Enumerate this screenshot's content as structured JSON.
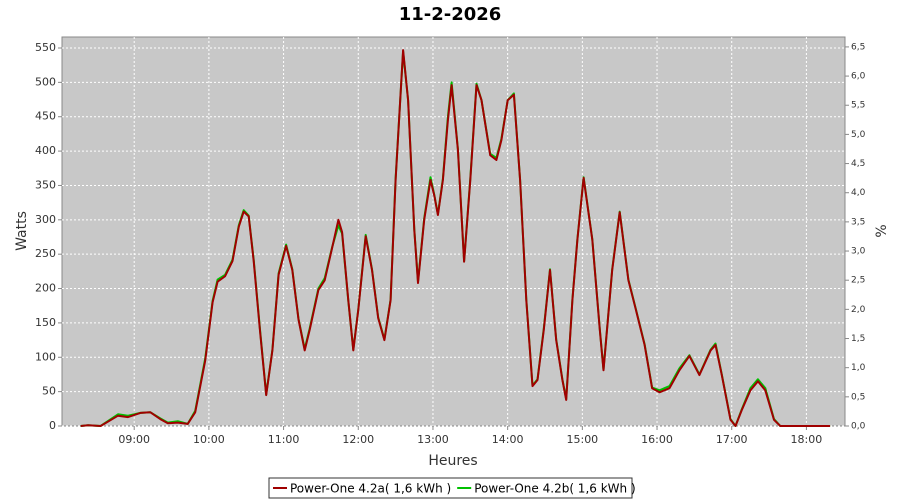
{
  "chart_data": {
    "type": "line",
    "title": "11-2-2026",
    "xlabel": "Heures",
    "ylabel": "Watts",
    "y2label": "%",
    "x": [
      "08:17",
      "08:23",
      "08:33",
      "08:47",
      "08:55",
      "09:05",
      "09:13",
      "09:21",
      "09:27",
      "09:35",
      "09:43",
      "09:49",
      "09:57",
      "10:03",
      "10:07",
      "10:13",
      "10:19",
      "10:24",
      "10:28",
      "10:32",
      "10:36",
      "10:41",
      "10:46",
      "10:51",
      "10:56",
      "11:02",
      "11:07",
      "11:12",
      "11:17",
      "11:21",
      "11:28",
      "11:33",
      "11:39",
      "11:44",
      "11:47",
      "11:52",
      "11:56",
      "12:00",
      "12:06",
      "12:11",
      "12:16",
      "12:21",
      "12:26",
      "12:30",
      "12:36",
      "12:40",
      "12:45",
      "12:48",
      "12:53",
      "12:58",
      "13:01",
      "13:04",
      "13:08",
      "13:12",
      "13:15",
      "13:20",
      "13:25",
      "13:30",
      "13:35",
      "13:39",
      "13:46",
      "13:51",
      "13:55",
      "14:00",
      "14:05",
      "14:10",
      "14:15",
      "14:20",
      "14:24",
      "14:29",
      "14:34",
      "14:39",
      "14:44",
      "14:47",
      "14:52",
      "14:56",
      "15:01",
      "15:08",
      "15:14",
      "15:17",
      "15:24",
      "15:30",
      "15:37",
      "15:43",
      "15:50",
      "15:56",
      "16:02",
      "16:10",
      "16:18",
      "16:26",
      "16:34",
      "16:43",
      "16:47",
      "16:52",
      "16:59",
      "17:03",
      "17:08",
      "17:15",
      "17:21",
      "17:27",
      "17:34",
      "17:39",
      "17:47",
      "18:19"
    ],
    "series": [
      {
        "name": "Power-One 4.2a( 1,6 kWh )",
        "color": "#a00000",
        "values": [
          0,
          1,
          0,
          15,
          13,
          19,
          20,
          10,
          4,
          5,
          3,
          20,
          95,
          180,
          210,
          218,
          240,
          290,
          312,
          305,
          240,
          140,
          45,
          110,
          220,
          262,
          227,
          155,
          110,
          140,
          198,
          212,
          259,
          300,
          282,
          183,
          110,
          169,
          276,
          227,
          157,
          125,
          183,
          358,
          547,
          474,
          285,
          208,
          300,
          358,
          336,
          307,
          358,
          445,
          496,
          402,
          239,
          358,
          496,
          474,
          394,
          387,
          416,
          474,
          482,
          358,
          183,
          58,
          67,
          140,
          227,
          125,
          67,
          38,
          183,
          271,
          361,
          271,
          140,
          81,
          227,
          311,
          212,
          169,
          118,
          55,
          49,
          55,
          81,
          102,
          74,
          110,
          118,
          74,
          9,
          0,
          23,
          52,
          65,
          52,
          9,
          0,
          0,
          0
        ]
      },
      {
        "name": "Power-One 4.2b( 1,6 kWh )",
        "color": "#00c000",
        "values": [
          0,
          1,
          0,
          17,
          15,
          19,
          20,
          11,
          5,
          7,
          3,
          22,
          98,
          182,
          213,
          220,
          242,
          292,
          314,
          306,
          242,
          142,
          46,
          111,
          222,
          264,
          228,
          156,
          112,
          142,
          200,
          215,
          260,
          292,
          280,
          182,
          111,
          170,
          278,
          228,
          158,
          126,
          184,
          360,
          545,
          474,
          286,
          210,
          302,
          362,
          337,
          308,
          360,
          450,
          500,
          403,
          240,
          360,
          498,
          474,
          396,
          390,
          418,
          474,
          484,
          358,
          184,
          59,
          68,
          142,
          228,
          126,
          68,
          39,
          184,
          272,
          362,
          272,
          141,
          82,
          228,
          312,
          213,
          170,
          119,
          56,
          52,
          58,
          84,
          103,
          75,
          111,
          120,
          75,
          10,
          0,
          24,
          55,
          68,
          55,
          10,
          0,
          0,
          0
        ]
      }
    ],
    "xlim": [
      "08:02",
      "18:31"
    ],
    "xticks": [
      "09:00",
      "10:00",
      "11:00",
      "12:00",
      "13:00",
      "14:00",
      "15:00",
      "16:00",
      "17:00",
      "18:00"
    ],
    "ylim": [
      0,
      566
    ],
    "yticks": [
      0,
      50,
      100,
      150,
      200,
      250,
      300,
      350,
      400,
      450,
      500,
      550
    ],
    "y2lim": [
      0,
      6.67
    ],
    "y2ticks": [
      {
        "value": 0,
        "label": "0,0"
      },
      {
        "value": 0.5,
        "label": "0,5"
      },
      {
        "value": 1,
        "label": "1,0"
      },
      {
        "value": 1.5,
        "label": "1,5"
      },
      {
        "value": 2,
        "label": "2,0"
      },
      {
        "value": 2.5,
        "label": "2,5"
      },
      {
        "value": 3,
        "label": "3,0"
      },
      {
        "value": 3.5,
        "label": "3,5"
      },
      {
        "value": 4,
        "label": "4,0"
      },
      {
        "value": 4.5,
        "label": "4,5"
      },
      {
        "value": 5,
        "label": "5,0"
      },
      {
        "value": 5.5,
        "label": "5,5"
      },
      {
        "value": 6,
        "label": "6,0"
      },
      {
        "value": 6.5,
        "label": "6,5"
      }
    ],
    "grid": true,
    "legend": "bottom"
  }
}
